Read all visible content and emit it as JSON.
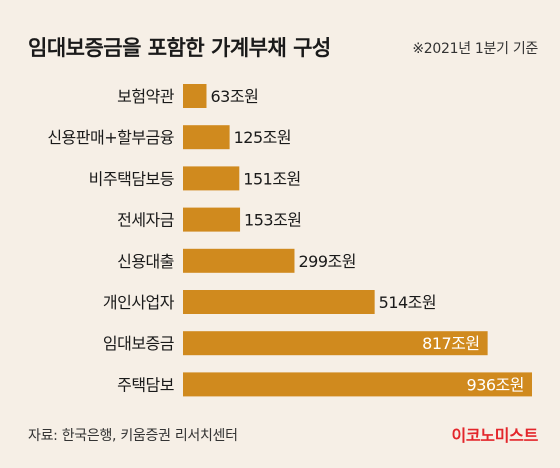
{
  "header": {
    "title": "임대보증금을 포함한 가계부채 구성",
    "note": "※2021년 1분기 기준"
  },
  "footer": {
    "source": "자료: 한국은행, 키움증권 리서치센터",
    "brand": "이코노미스트"
  },
  "colors": {
    "bar": "#d08a1e",
    "background": "#f6efe6",
    "label_dark": "#1a1a1a",
    "label_light": "#ffffff",
    "brand": "#e3262b"
  },
  "chart_data": {
    "type": "bar",
    "orientation": "horizontal",
    "categories": [
      "보험약관",
      "신용판매+할부금융",
      "비주택담보등",
      "전세자금",
      "신용대출",
      "개인사업자",
      "임대보증금",
      "주택담보"
    ],
    "values": [
      63,
      125,
      151,
      153,
      299,
      514,
      817,
      936
    ],
    "value_labels": [
      "63조원",
      "125조원",
      "151조원",
      "153조원",
      "299조원",
      "514조원",
      "817조원",
      "936조원"
    ],
    "xlim": [
      0,
      936
    ],
    "grid": false,
    "legend": "none"
  }
}
